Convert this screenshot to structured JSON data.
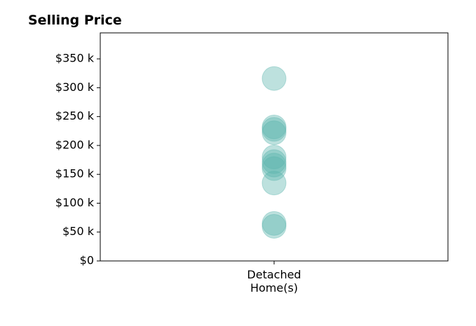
{
  "chart_data": {
    "type": "scatter",
    "title": "Selling Price",
    "xlabel": "",
    "ylabel": "",
    "categories": [
      "Detached\nHome(s)"
    ],
    "category_lines": [
      "Detached",
      "Home(s)"
    ],
    "ylim": [
      0,
      395000
    ],
    "yticks": [
      0,
      50000,
      100000,
      150000,
      200000,
      250000,
      300000,
      350000
    ],
    "ytick_labels": [
      "$0",
      "$50 k",
      "$100 k",
      "$150 k",
      "$200 k",
      "$250 k",
      "$300 k",
      "$350 k"
    ],
    "series": [
      {
        "category": "Detached\nHome(s)",
        "values": [
          316000,
          232000,
          228000,
          222000,
          180000,
          172000,
          166000,
          160000,
          135000,
          65000,
          60000
        ]
      }
    ],
    "marker_color": "#5ab4ac",
    "marker_opacity": 0.4,
    "grid": false,
    "legend": "none"
  }
}
